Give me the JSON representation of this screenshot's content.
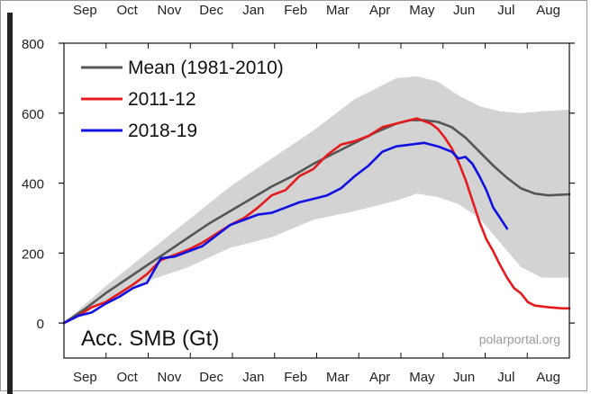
{
  "chart_data": {
    "type": "line",
    "title": "",
    "ylabel": "Acc. SMB (Gt)",
    "xlabel": "",
    "credit": "polarportal.org",
    "months": [
      "Sep",
      "Oct",
      "Nov",
      "Dec",
      "Jan",
      "Feb",
      "Mar",
      "Apr",
      "May",
      "Jun",
      "Jul",
      "Aug"
    ],
    "xlim": [
      0,
      365
    ],
    "ylim": [
      -100,
      800
    ],
    "yticks": [
      0,
      200,
      400,
      600,
      800
    ],
    "band": {
      "name": "range",
      "color": "#d3d3d3",
      "x": [
        0,
        30,
        60,
        90,
        120,
        150,
        180,
        210,
        240,
        255,
        270,
        285,
        300,
        315,
        330,
        345,
        365
      ],
      "upper": [
        0,
        105,
        200,
        295,
        390,
        470,
        550,
        640,
        700,
        705,
        690,
        650,
        620,
        605,
        600,
        605,
        610
      ],
      "lower": [
        0,
        60,
        120,
        160,
        215,
        245,
        295,
        320,
        350,
        370,
        360,
        340,
        300,
        230,
        160,
        130,
        130
      ]
    },
    "series": [
      {
        "name": "Mean (1981-2010)",
        "color": "#555555",
        "x": [
          0,
          15,
          30,
          45,
          60,
          75,
          90,
          105,
          120,
          135,
          150,
          165,
          180,
          195,
          210,
          225,
          240,
          250,
          260,
          270,
          280,
          290,
          300,
          310,
          320,
          330,
          340,
          350,
          365
        ],
        "y": [
          0,
          40,
          85,
          125,
          165,
          205,
          245,
          285,
          320,
          355,
          390,
          420,
          455,
          485,
          515,
          545,
          570,
          580,
          580,
          575,
          560,
          530,
          490,
          450,
          415,
          385,
          370,
          365,
          368
        ]
      },
      {
        "name": "2011-12",
        "color": "#e41a1c",
        "x": [
          0,
          10,
          20,
          30,
          40,
          50,
          60,
          70,
          80,
          90,
          100,
          110,
          120,
          130,
          140,
          150,
          160,
          170,
          180,
          190,
          200,
          210,
          220,
          230,
          240,
          248,
          255,
          260,
          265,
          270,
          275,
          280,
          285,
          290,
          295,
          300,
          305,
          310,
          315,
          320,
          325,
          330,
          335,
          340,
          350,
          360,
          365
        ],
        "y": [
          0,
          20,
          45,
          60,
          85,
          110,
          140,
          180,
          195,
          210,
          230,
          255,
          280,
          300,
          330,
          365,
          380,
          420,
          440,
          480,
          510,
          520,
          535,
          560,
          570,
          578,
          585,
          577,
          570,
          555,
          530,
          500,
          460,
          410,
          350,
          290,
          240,
          205,
          165,
          130,
          100,
          85,
          60,
          50,
          45,
          42,
          42
        ]
      },
      {
        "name": "2018-19",
        "color": "#1010e0",
        "x": [
          0,
          10,
          20,
          30,
          40,
          50,
          60,
          70,
          80,
          90,
          100,
          110,
          120,
          130,
          140,
          150,
          160,
          170,
          180,
          190,
          200,
          210,
          220,
          230,
          240,
          250,
          260,
          270,
          280,
          285,
          290,
          295,
          300,
          305,
          310,
          315,
          320
        ],
        "y": [
          0,
          20,
          30,
          55,
          75,
          100,
          115,
          185,
          190,
          205,
          220,
          250,
          280,
          295,
          310,
          315,
          330,
          345,
          355,
          365,
          385,
          420,
          450,
          490,
          505,
          510,
          515,
          505,
          490,
          470,
          475,
          455,
          420,
          380,
          330,
          300,
          270
        ]
      }
    ],
    "legend": [
      "Mean (1981-2010)",
      "2011-12",
      "2018-19"
    ],
    "legend_position": "top-left"
  }
}
